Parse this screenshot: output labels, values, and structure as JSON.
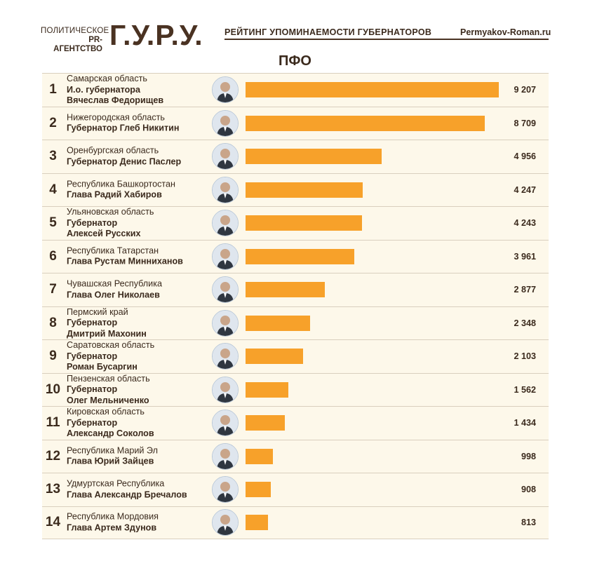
{
  "header": {
    "logo_line1": "ПОЛИТИЧЕСКОЕ",
    "logo_line2": "PR-АГЕНТСТВО",
    "logo_big": "Г.У.Р.У.",
    "title": "РЕЙТИНГ УПОМИНАЕМОСТИ ГУБЕРНАТОРОВ",
    "site": "Permyakov-Roman.ru"
  },
  "region": "ПФО",
  "colors": {
    "bar": "#f7a12a",
    "row_bg": "#fdf8ea",
    "text": "#3b2a1d"
  },
  "chart_data": {
    "type": "bar",
    "orientation": "horizontal",
    "title": "ПФО",
    "categories": [
      "Самарская область",
      "Нижегородская область",
      "Оренбургская область",
      "Республика Башкортостан",
      "Ульяновская область",
      "Республика Татарстан",
      "Чувашская Республика",
      "Пермский край",
      "Саратовская область",
      "Пензенская область",
      "Кировская область",
      "Республика Марий Эл",
      "Удмуртская Республика",
      "Республика Мордовия"
    ],
    "values": [
      9207,
      8709,
      4956,
      4247,
      4243,
      3961,
      2877,
      2348,
      2103,
      1562,
      1434,
      998,
      908,
      813
    ],
    "xlim": [
      0,
      9207
    ]
  },
  "rows": [
    {
      "rank": "1",
      "region": "Самарская область",
      "name": "И.о. губернатора\nВячеслав Федорищев",
      "value_label": "9 207"
    },
    {
      "rank": "2",
      "region": "Нижегородская область",
      "name": "Губернатор Глеб Никитин",
      "value_label": "8 709"
    },
    {
      "rank": "3",
      "region": "Оренбургская область",
      "name": "Губернатор Денис Паслер",
      "value_label": "4 956"
    },
    {
      "rank": "4",
      "region": "Республика Башкортостан",
      "name": "Глава Радий Хабиров",
      "value_label": "4 247"
    },
    {
      "rank": "5",
      "region": "Ульяновская область",
      "name": "Губернатор\nАлексей Русских",
      "value_label": "4 243"
    },
    {
      "rank": "6",
      "region": "Республика Татарстан",
      "name": "Глава Рустам Минниханов",
      "value_label": "3 961"
    },
    {
      "rank": "7",
      "region": "Чувашская Республика",
      "name": "Глава Олег Николаев",
      "value_label": "2 877"
    },
    {
      "rank": "8",
      "region": "Пермский край",
      "name": "Губернатор\nДмитрий Махонин",
      "value_label": "2 348"
    },
    {
      "rank": "9",
      "region": "Саратовская область",
      "name": "Губернатор\nРоман Бусаргин",
      "value_label": "2 103"
    },
    {
      "rank": "10",
      "region": "Пензенская область",
      "name": "Губернатор\nОлег Мельниченко",
      "value_label": "1 562"
    },
    {
      "rank": "11",
      "region": "Кировская область",
      "name": "Губернатор\nАлександр Соколов",
      "value_label": "1 434"
    },
    {
      "rank": "12",
      "region": "Республика Марий Эл",
      "name": "Глава Юрий Зайцев",
      "value_label": "998"
    },
    {
      "rank": "13",
      "region": "Удмуртская Республика",
      "name": "Глава Александр Бречалов",
      "value_label": "908"
    },
    {
      "rank": "14",
      "region": "Республика Мордовия",
      "name": "Глава Артем Здунов",
      "value_label": "813"
    }
  ]
}
